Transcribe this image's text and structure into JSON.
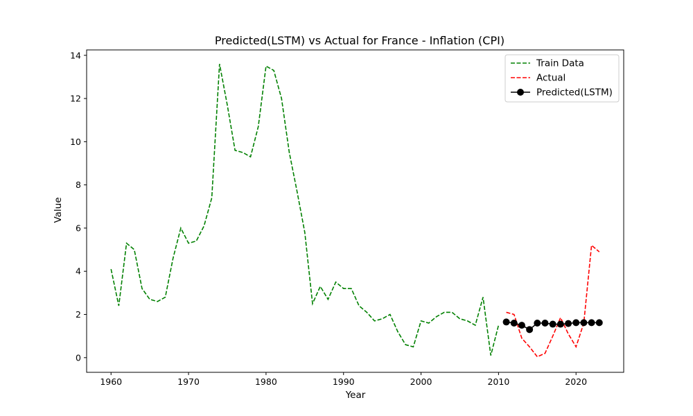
{
  "chart_data": {
    "type": "line",
    "title": "Predicted(LSTM) vs Actual for France - Inflation (CPI)",
    "xlabel": "Year",
    "ylabel": "Value",
    "xlim": [
      1956.85,
      2026.15
    ],
    "ylim": [
      -0.68,
      14.25
    ],
    "xticks": [
      1960,
      1970,
      1980,
      1990,
      2000,
      2010,
      2020
    ],
    "yticks": [
      0,
      2,
      4,
      6,
      8,
      10,
      12,
      14
    ],
    "grid": false,
    "legend_position": "top-right",
    "series": [
      {
        "name": "Train Data",
        "color": "#008000",
        "style": "dashed",
        "marker": "none",
        "x": [
          1960,
          1961,
          1962,
          1963,
          1964,
          1965,
          1966,
          1967,
          1968,
          1969,
          1970,
          1971,
          1972,
          1973,
          1974,
          1975,
          1976,
          1977,
          1978,
          1979,
          1980,
          1981,
          1982,
          1983,
          1984,
          1985,
          1986,
          1987,
          1988,
          1989,
          1990,
          1991,
          1992,
          1993,
          1994,
          1995,
          1996,
          1997,
          1998,
          1999,
          2000,
          2001,
          2002,
          2003,
          2004,
          2005,
          2006,
          2007,
          2008,
          2009,
          2010
        ],
        "values": [
          4.1,
          2.4,
          5.3,
          5.0,
          3.2,
          2.7,
          2.6,
          2.8,
          4.6,
          6.0,
          5.3,
          5.4,
          6.1,
          7.4,
          13.6,
          11.7,
          9.6,
          9.5,
          9.3,
          10.7,
          13.5,
          13.3,
          12.0,
          9.5,
          7.7,
          5.8,
          2.5,
          3.3,
          2.7,
          3.5,
          3.2,
          3.2,
          2.4,
          2.1,
          1.7,
          1.8,
          2.0,
          1.2,
          0.6,
          0.5,
          1.7,
          1.6,
          1.9,
          2.1,
          2.1,
          1.8,
          1.7,
          1.5,
          2.8,
          0.1,
          1.5
        ]
      },
      {
        "name": "Actual",
        "color": "#ff0000",
        "style": "dashed",
        "marker": "none",
        "x": [
          2011,
          2012,
          2013,
          2014,
          2015,
          2016,
          2017,
          2018,
          2019,
          2020,
          2021,
          2022,
          2023
        ],
        "values": [
          2.1,
          2.0,
          0.9,
          0.5,
          0.04,
          0.2,
          1.0,
          1.85,
          1.1,
          0.5,
          1.6,
          5.2,
          4.9
        ]
      },
      {
        "name": "Predicted(LSTM)",
        "color": "#000000",
        "style": "solid",
        "marker": "circle",
        "x": [
          2011,
          2012,
          2013,
          2014,
          2015,
          2016,
          2017,
          2018,
          2019,
          2020,
          2021,
          2022,
          2023
        ],
        "values": [
          1.65,
          1.6,
          1.5,
          1.3,
          1.6,
          1.6,
          1.55,
          1.55,
          1.58,
          1.62,
          1.62,
          1.62,
          1.62
        ]
      }
    ]
  }
}
